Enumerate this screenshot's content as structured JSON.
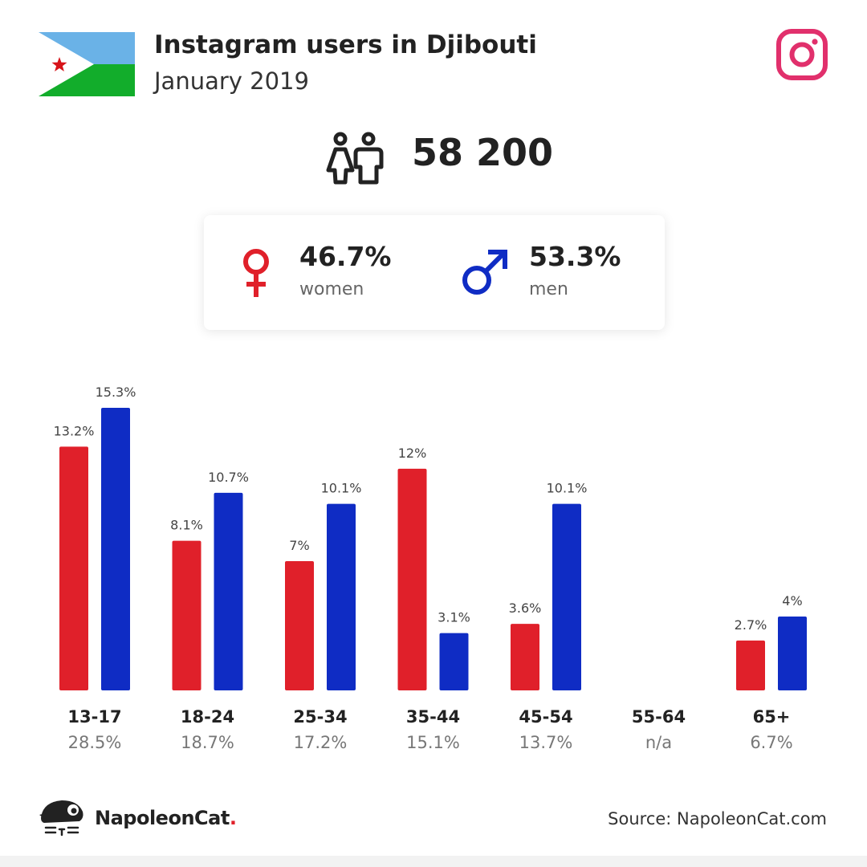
{
  "header": {
    "title": "Instagram users in Djibouti",
    "subtitle": "January 2019"
  },
  "total": {
    "value": "58 200",
    "icon": "people-icon"
  },
  "gender": {
    "women": {
      "pct": "46.7%",
      "label": "women",
      "icon": "female-icon",
      "color": "#e0202a"
    },
    "men": {
      "pct": "53.3%",
      "label": "men",
      "icon": "male-icon",
      "color": "#0f2cc4"
    }
  },
  "chart_data": {
    "type": "bar",
    "categories": [
      "13-17",
      "18-24",
      "25-34",
      "35-44",
      "45-54",
      "55-64",
      "65+"
    ],
    "group_totals": [
      "28.5%",
      "18.7%",
      "17.2%",
      "15.1%",
      "13.7%",
      "n/a",
      "6.7%"
    ],
    "series": [
      {
        "name": "women",
        "color": "#e0202a",
        "values": [
          13.2,
          8.1,
          7,
          12,
          3.6,
          null,
          2.7
        ],
        "labels": [
          "13.2%",
          "8.1%",
          "7%",
          "12%",
          "3.6%",
          "",
          "2.7%"
        ]
      },
      {
        "name": "men",
        "color": "#0f2cc4",
        "values": [
          15.3,
          10.7,
          10.1,
          3.1,
          10.1,
          null,
          4
        ],
        "labels": [
          "15.3%",
          "10.7%",
          "10.1%",
          "3.1%",
          "10.1%",
          "",
          "4%"
        ]
      }
    ],
    "ylim": [
      0,
      15.3
    ],
    "grid": false,
    "legend": "none"
  },
  "footer": {
    "brand": "NapoleonCat",
    "brand_dot": ".",
    "source": "Source: NapoleonCat.com"
  },
  "colors": {
    "ig": "#e1306c",
    "flag_blue": "#6ab2e7",
    "flag_green": "#12ad2b",
    "flag_star": "#d7141a"
  }
}
